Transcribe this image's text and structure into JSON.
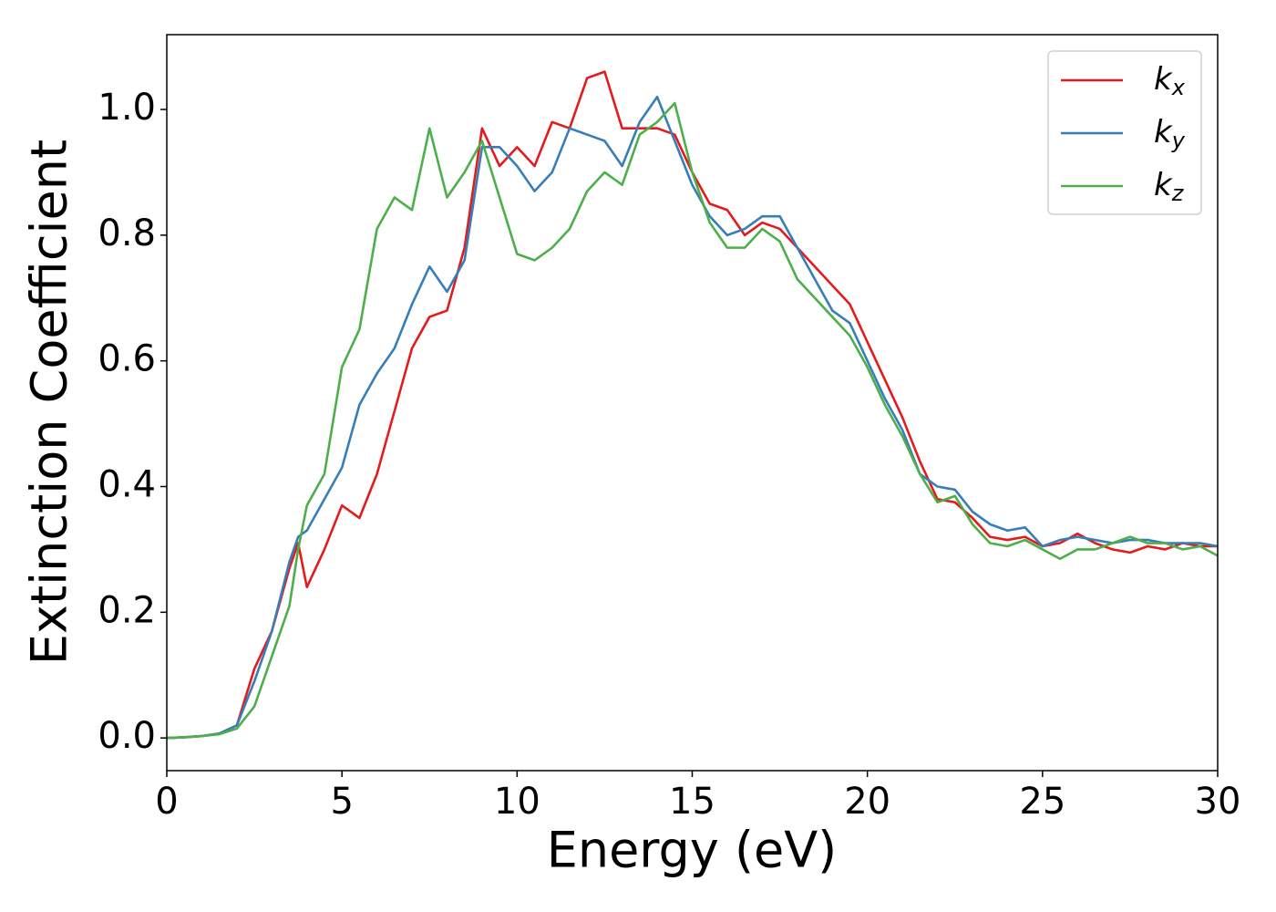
{
  "chart_data": {
    "type": "line",
    "x_label": "Energy (eV)",
    "y_label": "Extinction Coefficient",
    "x": [
      0,
      0.5,
      1,
      1.5,
      2,
      2.5,
      3,
      3.5,
      3.75,
      4,
      4.5,
      5,
      5.5,
      6,
      6.5,
      7,
      7.5,
      8,
      8.5,
      9,
      9.5,
      10,
      10.5,
      11,
      11.5,
      12,
      12.5,
      13,
      13.5,
      14,
      14.5,
      15,
      15.5,
      16,
      16.5,
      17,
      17.5,
      18,
      18.5,
      19,
      19.5,
      20,
      20.5,
      21,
      21.5,
      22,
      22.5,
      23,
      23.5,
      24,
      24.5,
      25,
      25.5,
      26,
      26.5,
      27,
      27.5,
      28,
      28.5,
      29,
      29.5,
      30
    ],
    "series": [
      {
        "name": "kx",
        "color": "#e41a1c",
        "values": [
          0,
          0.001,
          0.003,
          0.007,
          0.02,
          0.11,
          0.17,
          0.27,
          0.31,
          0.24,
          0.3,
          0.37,
          0.35,
          0.42,
          0.52,
          0.62,
          0.67,
          0.68,
          0.78,
          0.97,
          0.91,
          0.94,
          0.91,
          0.98,
          0.97,
          1.05,
          1.06,
          0.97,
          0.97,
          0.97,
          0.96,
          0.9,
          0.85,
          0.84,
          0.8,
          0.82,
          0.81,
          0.78,
          0.75,
          0.72,
          0.69,
          0.63,
          0.57,
          0.51,
          0.44,
          0.38,
          0.375,
          0.35,
          0.32,
          0.315,
          0.32,
          0.305,
          0.31,
          0.325,
          0.31,
          0.3,
          0.295,
          0.305,
          0.3,
          0.31,
          0.305,
          0.305
        ]
      },
      {
        "name": "ky",
        "color": "#377eb8",
        "values": [
          0,
          0.001,
          0.003,
          0.007,
          0.02,
          0.09,
          0.17,
          0.28,
          0.32,
          0.33,
          0.38,
          0.43,
          0.53,
          0.58,
          0.62,
          0.69,
          0.75,
          0.71,
          0.76,
          0.94,
          0.94,
          0.91,
          0.87,
          0.9,
          0.97,
          0.96,
          0.95,
          0.91,
          0.98,
          1.02,
          0.95,
          0.88,
          0.83,
          0.8,
          0.81,
          0.83,
          0.83,
          0.78,
          0.73,
          0.68,
          0.66,
          0.6,
          0.54,
          0.49,
          0.42,
          0.4,
          0.395,
          0.36,
          0.34,
          0.33,
          0.335,
          0.305,
          0.315,
          0.32,
          0.315,
          0.31,
          0.315,
          0.315,
          0.31,
          0.31,
          0.31,
          0.305
        ]
      },
      {
        "name": "kz",
        "color": "#4daf4a",
        "values": [
          0,
          0.001,
          0.003,
          0.006,
          0.015,
          0.05,
          0.13,
          0.21,
          0.3,
          0.37,
          0.42,
          0.59,
          0.65,
          0.81,
          0.86,
          0.84,
          0.97,
          0.86,
          0.9,
          0.95,
          0.86,
          0.77,
          0.76,
          0.78,
          0.81,
          0.87,
          0.9,
          0.88,
          0.96,
          0.98,
          1.01,
          0.9,
          0.82,
          0.78,
          0.78,
          0.81,
          0.79,
          0.73,
          0.7,
          0.67,
          0.64,
          0.59,
          0.53,
          0.48,
          0.42,
          0.375,
          0.385,
          0.34,
          0.31,
          0.305,
          0.315,
          0.3,
          0.285,
          0.3,
          0.3,
          0.31,
          0.32,
          0.31,
          0.31,
          0.3,
          0.305,
          0.29
        ]
      }
    ],
    "xlim": [
      0,
      30
    ],
    "xticks": [
      0,
      5,
      10,
      15,
      20,
      25,
      30
    ],
    "ylim": [
      -0.052,
      1.119
    ],
    "yticks": [
      {
        "value": 0,
        "label": "0.0"
      },
      0.2,
      0.4,
      0.6,
      0.8,
      {
        "value": 1,
        "label": "1.0"
      }
    ],
    "legend": "upper right"
  }
}
